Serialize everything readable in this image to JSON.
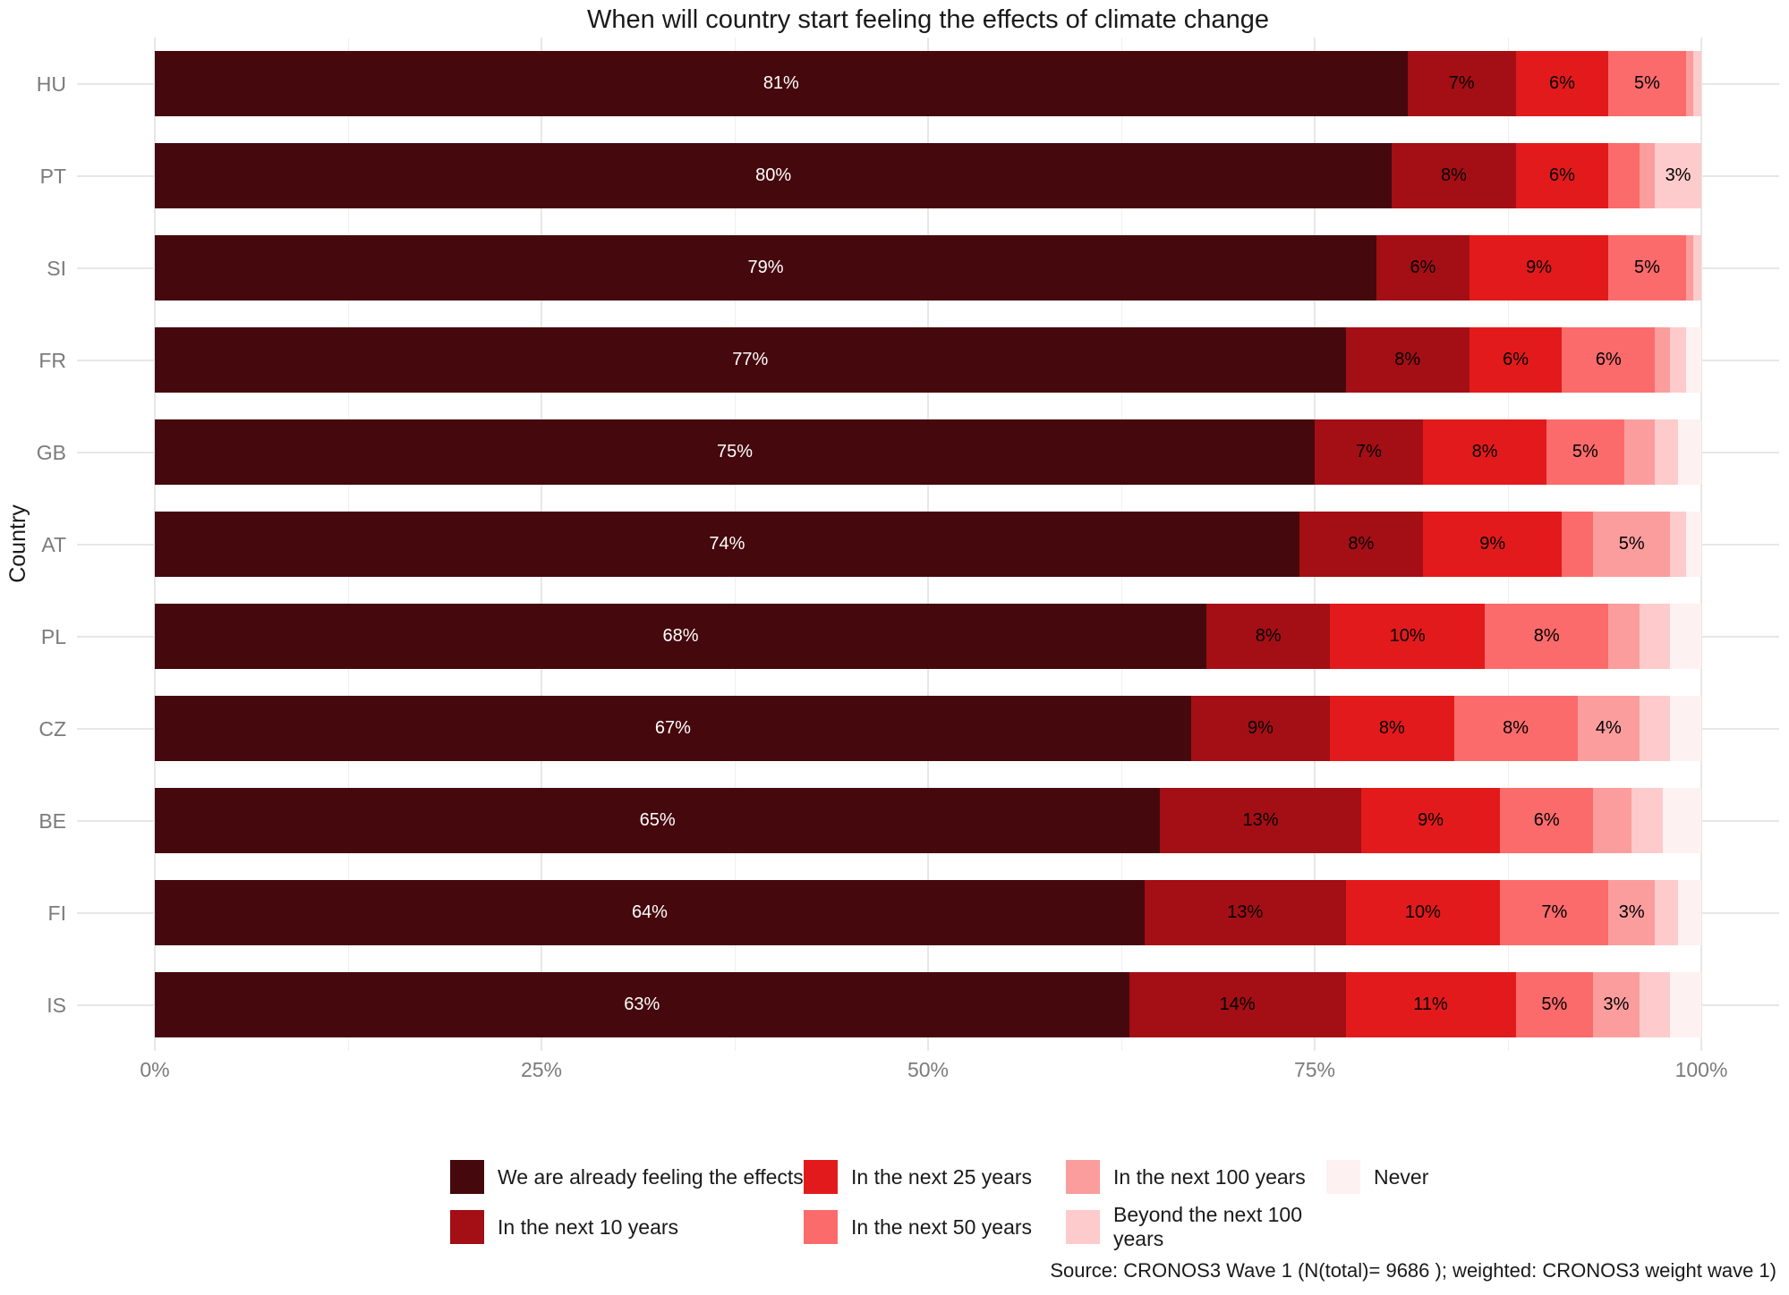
{
  "title": "When will country start feeling the effects of climate change",
  "source": "Source: CRONOS3 Wave 1 (N(total)= 9686 ); weighted: CRONOS3 weight wave 1)",
  "axes": {
    "y_title": "Country",
    "x_major_ticks": [
      0,
      25,
      50,
      75,
      100
    ],
    "x_minor_ticks": [
      12.5,
      37.5,
      62.5,
      87.5
    ],
    "x_tick_labels": [
      "0%",
      "25%",
      "50%",
      "75%",
      "100%"
    ]
  },
  "legend": {
    "row_layout": [
      [
        0,
        2,
        4,
        6
      ],
      [
        1,
        3,
        5
      ]
    ]
  },
  "chart_data": {
    "type": "bar",
    "orientation": "horizontal",
    "stacked": true,
    "title": "When will country start feeling the effects of climate change",
    "xlabel": "",
    "ylabel": "Country",
    "xlim": [
      0,
      100
    ],
    "grid": true,
    "legend_position": "bottom",
    "label_threshold": 3,
    "label_unit": "%",
    "categories": [
      "HU",
      "PT",
      "SI",
      "FR",
      "GB",
      "AT",
      "PL",
      "CZ",
      "BE",
      "FI",
      "IS"
    ],
    "series": [
      {
        "name": "We are already feeling the effects",
        "color": "#45090D",
        "label_color": "#ffffff",
        "values": [
          81,
          80,
          79,
          77,
          75,
          74,
          68,
          67,
          65,
          64,
          63
        ]
      },
      {
        "name": "In the next 10 years",
        "color": "#A40E15",
        "label_color": "#000000",
        "values": [
          7,
          8,
          6,
          8,
          7,
          8,
          8,
          9,
          13,
          13,
          14
        ]
      },
      {
        "name": "In the next 25 years",
        "color": "#E31A1C",
        "label_color": "#000000",
        "values": [
          6,
          6,
          9,
          6,
          8,
          9,
          10,
          8,
          9,
          10,
          11
        ]
      },
      {
        "name": "In the next 50 years",
        "color": "#FB6B6B",
        "label_color": "#000000",
        "values": [
          5,
          2,
          5,
          6,
          5,
          2,
          8,
          8,
          6,
          7,
          5
        ]
      },
      {
        "name": "In the next 100 years",
        "color": "#FB9D9D",
        "label_color": "#000000",
        "values": [
          0.5,
          1,
          0.5,
          1,
          2,
          5,
          2,
          4,
          2.5,
          3,
          3
        ]
      },
      {
        "name": "Beyond the next 100 years",
        "color": "#FDCBCB",
        "label_color": "#000000",
        "values": [
          0.5,
          3,
          0.5,
          1,
          1.5,
          1,
          2,
          2,
          2,
          1.5,
          2
        ]
      },
      {
        "name": "Never",
        "color": "#FEF1F1",
        "label_color": "#000000",
        "values": [
          0,
          0,
          0,
          1,
          1.5,
          1,
          2,
          2,
          2.5,
          1.5,
          2
        ]
      }
    ]
  }
}
